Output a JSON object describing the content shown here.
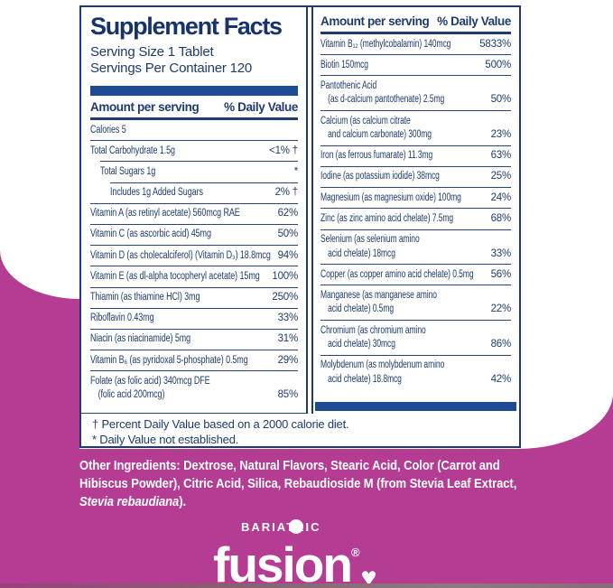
{
  "colors": {
    "magenta": "#b43c93",
    "navy_text": "#1e3b6e",
    "bar_blue": "#1c4b94",
    "white": "#ffffff"
  },
  "panel": {
    "title": "Supplement Facts",
    "serving_size": "Serving Size 1 Tablet",
    "servings_per_container": "Servings Per Container 120",
    "header": {
      "amount": "Amount per serving",
      "dv": "% Daily Value"
    },
    "left_rows": [
      {
        "name": "Calories 5",
        "dv": ""
      },
      {
        "name": "Total Carbohydrate 1.5g",
        "dv": "<1% †"
      },
      {
        "name": "Total Sugars 1g",
        "dv": "*"
      },
      {
        "name": "Includes 1g Added Sugars",
        "dv": "2% †"
      },
      {
        "name": "Vitamin A (as retinyl acetate) 560mcg RAE",
        "dv": "62%"
      },
      {
        "name": "Vitamin C (as ascorbic acid) 45mg",
        "dv": "50%"
      },
      {
        "name": "Vitamin D (as cholecalciferol) (Vitamin D₃) 18.8mcg",
        "dv": "94%"
      },
      {
        "name": "Vitamin E (as dl-alpha tocopheryl acetate) 15mg",
        "dv": "100%"
      },
      {
        "name": "Thiamin (as thiamine HCl) 3mg",
        "dv": "250%"
      },
      {
        "name": "Riboflavin 0.43mg",
        "dv": "33%"
      },
      {
        "name": "Niacin (as niacinamide) 5mg",
        "dv": "31%"
      },
      {
        "name": "Vitamin B₆ (as pyridoxal 5-phosphate) 0.5mg",
        "dv": "29%"
      },
      {
        "name": "Folate (as folic acid) 340mcg DFE\n(folic acid 200mcg)",
        "dv": "85%"
      }
    ],
    "right_rows": [
      {
        "name": "Vitamin B₁₂ (methylcobalamin) 140mcg",
        "dv": "5833%"
      },
      {
        "name": "Biotin 150mcg",
        "dv": "500%"
      },
      {
        "name": "Pantothenic Acid\n(as d-calcium pantothenate) 2.5mg",
        "dv": "50%"
      },
      {
        "name": "Calcium (as calcium citrate\nand calcium carbonate) 300mg",
        "dv": "23%"
      },
      {
        "name": "Iron (as ferrous fumarate) 11.3mg",
        "dv": "63%"
      },
      {
        "name": "Iodine (as potassium iodide) 38mcg",
        "dv": "25%"
      },
      {
        "name": "Magnesium (as magnesium oxide) 100mg",
        "dv": "24%"
      },
      {
        "name": "Zinc (as zinc amino acid chelate) 7.5mg",
        "dv": "68%"
      },
      {
        "name": "Selenium (as selenium amino\nacid chelate) 18mcg",
        "dv": "33%"
      },
      {
        "name": "Copper (as copper amino acid chelate) 0.5mg",
        "dv": "56%"
      },
      {
        "name": "Manganese (as manganese amino\nacid chelate) 0.5mg",
        "dv": "22%"
      },
      {
        "name": "Chromium (as chromium amino\nacid chelate) 30mcg",
        "dv": "86%"
      },
      {
        "name": "Molybdenum (as molybdenum amino\nacid chelate) 18.8mcg",
        "dv": "42%"
      }
    ],
    "footnotes": [
      "† Percent Daily Value based on a 2000 calorie diet.",
      "* Daily Value not established."
    ]
  },
  "other_ingredients": {
    "label": "Other Ingredients:",
    "body": " Dextrose, Natural Flavors, Stearic Acid, Color (Carrot and Hibiscus Powder), Citric Acid, Silica, Rebaudioside M (from Stevia Leaf Extract, ",
    "italic": "Stevia rebaudiana",
    "suffix": ")."
  },
  "logo": {
    "top": "BARIATRIC",
    "word": "fusion",
    "registered": "®",
    "heart": "♥"
  }
}
